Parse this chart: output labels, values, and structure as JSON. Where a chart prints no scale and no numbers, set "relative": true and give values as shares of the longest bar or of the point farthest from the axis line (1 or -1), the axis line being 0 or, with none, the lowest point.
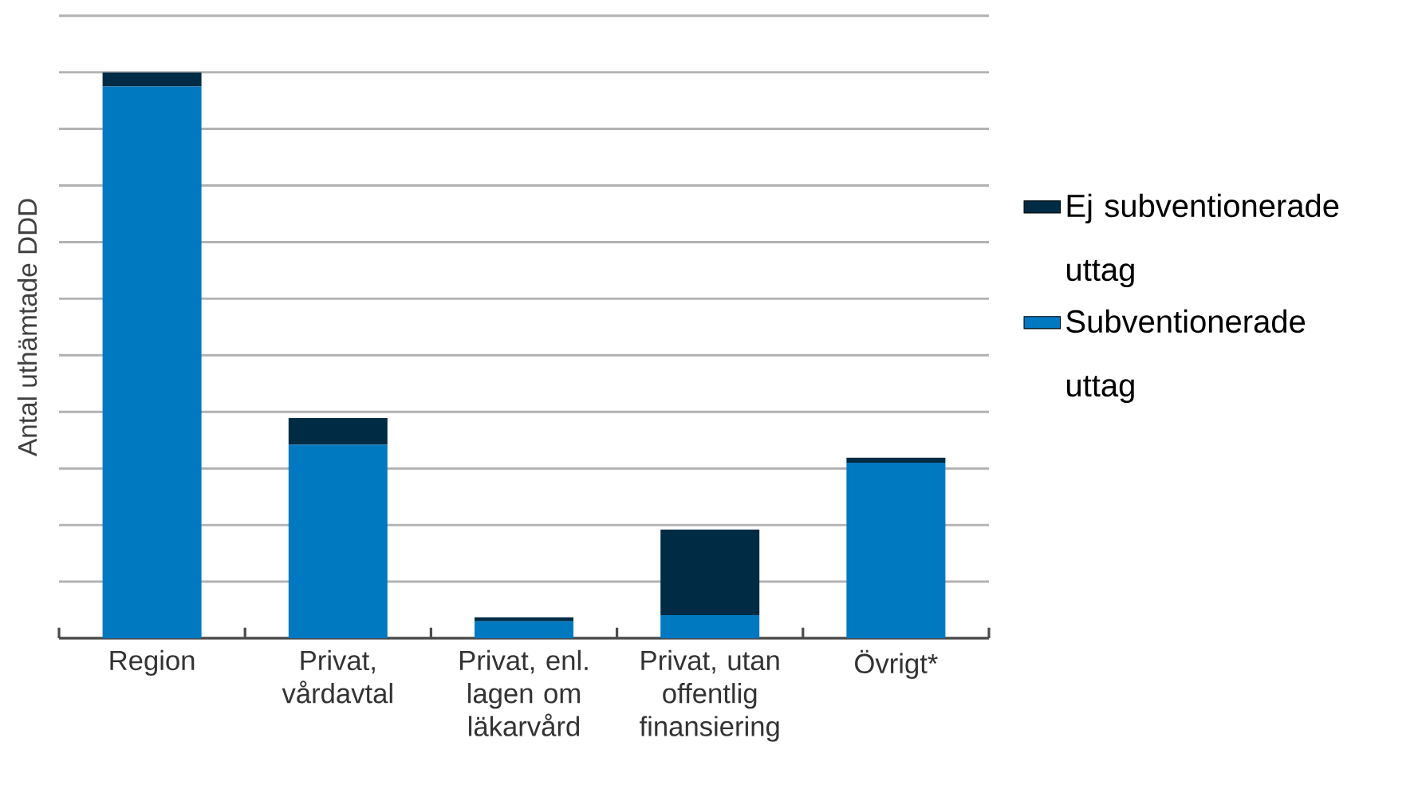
{
  "chart_data": {
    "type": "bar",
    "ylabel": "Antal uthämtade DDD",
    "categories": [
      "Region",
      "Privat, vårdavtal",
      "Privat, enl. lagen om läkarvård",
      "Privat, utan offentlig finansiering",
      "Övrigt*"
    ],
    "series": [
      {
        "name": "Subventionerade uttag",
        "color": "#0079c1",
        "values": [
          0.975,
          0.342,
          0.03,
          0.041,
          0.31
        ]
      },
      {
        "name": "Ej subventionerade uttag",
        "color": "#002b45",
        "values": [
          0.025,
          0.047,
          0.007,
          0.151,
          0.009
        ]
      }
    ],
    "stacked": true,
    "relative": true,
    "legend": "right",
    "grid": "y"
  }
}
